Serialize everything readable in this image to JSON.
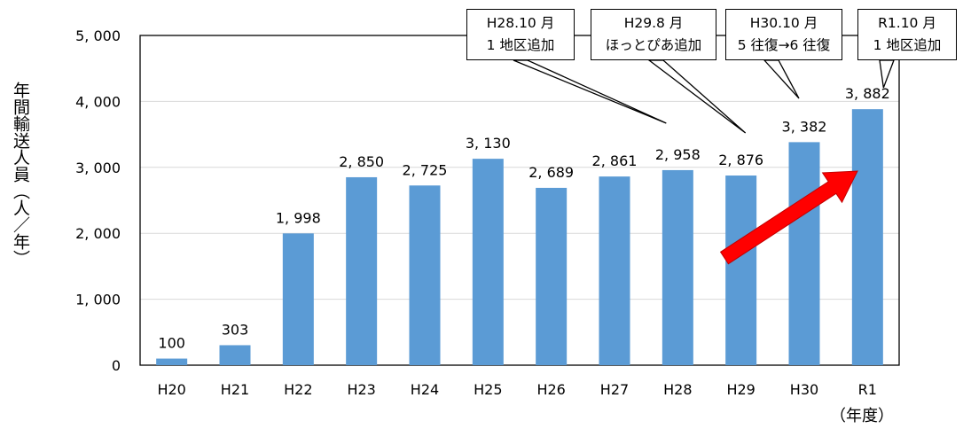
{
  "chart_data": {
    "type": "bar",
    "categories": [
      "H20",
      "H21",
      "H22",
      "H23",
      "H24",
      "H25",
      "H26",
      "H27",
      "H28",
      "H29",
      "H30",
      "R1"
    ],
    "values": [
      100,
      303,
      1998,
      2850,
      2725,
      3130,
      2689,
      2861,
      2958,
      2876,
      3382,
      3882
    ],
    "value_labels": [
      "100",
      "303",
      "1, 998",
      "2, 850",
      "2, 725",
      "3, 130",
      "2, 689",
      "2, 861",
      "2, 958",
      "2, 876",
      "3, 382",
      "3, 882"
    ],
    "ylim": [
      0,
      5000
    ],
    "yticks": [
      0,
      1000,
      2000,
      3000,
      4000,
      5000
    ],
    "ytick_labels": [
      "0",
      "1, 000",
      "2, 000",
      "3, 000",
      "4, 000",
      "5, 000"
    ],
    "ylabel": "年間輸送人員（人／年）",
    "xlabel": "（年度）",
    "grid": true,
    "bar_color": "#5b9bd5",
    "arrow_color": "#ff0000",
    "annotations": [
      {
        "line1": "H28.10 月",
        "line2": "1 地区追加",
        "points_to": "H28"
      },
      {
        "line1": "H29.8 月",
        "line2": "ほっとぴあ追加",
        "points_to": "H29"
      },
      {
        "line1": "H30.10 月",
        "line2": "5 往復→6 往復",
        "points_to": "H30"
      },
      {
        "line1": "R1.10 月",
        "line2": "1 地区追加",
        "points_to": "R1"
      }
    ]
  }
}
